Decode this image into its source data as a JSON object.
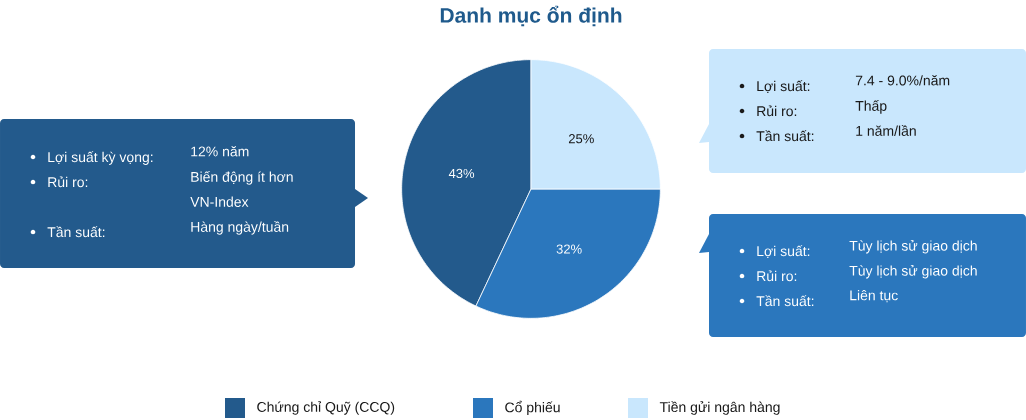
{
  "chart_data": {
    "type": "pie",
    "title": "Danh mục ổn định",
    "categories": [
      "Chứng chỉ Quỹ (CCQ)",
      "Cổ phiếu",
      "Tiền gửi ngân hàng"
    ],
    "values": [
      43,
      32,
      25
    ],
    "colors": [
      "#235a8c",
      "#2b77bd",
      "#c9e7fd"
    ],
    "value_labels": [
      "43%",
      "32%",
      "25%"
    ],
    "legend": "bottom",
    "annotations": [
      "Lợi suất kỳ vọng:",
      "12% năm",
      "Rủi ro:",
      "Biến động ít hơn VN-Index",
      "Tần suất:",
      "Hàng ngày/tuần",
      "Lợi suất:",
      "7.4 - 9.0%/năm",
      "Rủi ro:",
      "Thấp",
      "Tần suất:",
      "1 năm/lần",
      "Lợi suất:",
      "Tùy lịch sử giao dịch",
      "Rủi ro:",
      "Tùy lịch sử giao dịch",
      "Tần suất:",
      "Liên tục"
    ]
  }
}
